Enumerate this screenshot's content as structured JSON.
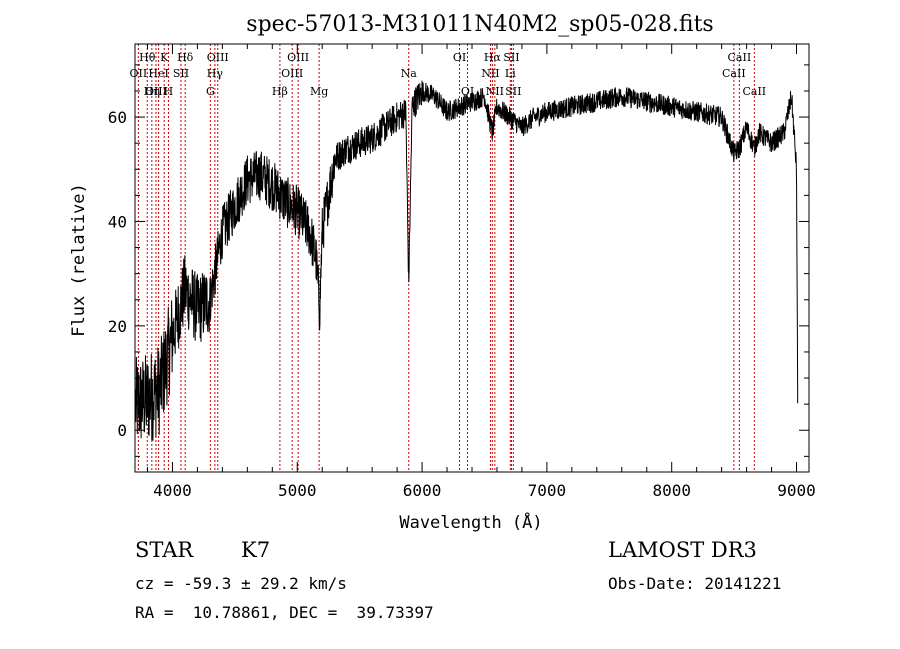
{
  "chart_data": {
    "type": "line",
    "title": "spec-57013-M31011N40M2_sp05-028.fits",
    "xlabel": "Wavelength (Å)",
    "ylabel": "Flux (relative)",
    "xlim": [
      3700,
      9100
    ],
    "ylim": [
      -8,
      74
    ],
    "xticks": [
      4000,
      5000,
      6000,
      7000,
      8000,
      9000
    ],
    "yticks": [
      0,
      20,
      40,
      60
    ],
    "xticklabels": [
      "4000",
      "5000",
      "6000",
      "7000",
      "8000",
      "9000"
    ],
    "yticklabels": [
      "0",
      "20",
      "40",
      "60"
    ],
    "spectrum_envelope": {
      "x": [
        3700,
        3800,
        3900,
        4000,
        4100,
        4200,
        4300,
        4400,
        4500,
        4600,
        4700,
        4800,
        4900,
        5000,
        5100,
        5150,
        5180,
        5200,
        5300,
        5400,
        5500,
        5600,
        5700,
        5800,
        5870,
        5893,
        5920,
        6000,
        6100,
        6200,
        6300,
        6400,
        6500,
        6563,
        6600,
        6700,
        6800,
        6900,
        7000,
        7200,
        7400,
        7600,
        7800,
        8000,
        8200,
        8400,
        8498,
        8542,
        8600,
        8662,
        8700,
        8800,
        8900,
        8960,
        9000,
        9010
      ],
      "y": [
        5,
        6,
        8,
        18,
        27,
        23,
        25,
        38,
        43,
        48,
        49,
        47,
        44,
        42,
        38,
        33,
        23,
        38,
        52,
        54,
        55,
        56,
        58,
        60,
        61,
        28,
        62,
        65,
        64,
        61,
        62,
        63,
        64,
        57,
        62,
        60,
        58,
        60,
        61,
        62,
        63,
        64,
        63,
        62,
        61,
        60,
        53,
        54,
        58,
        54,
        57,
        55,
        57,
        64,
        50,
        2
      ]
    },
    "lines": [
      {
        "wave": 3727,
        "label": "OII",
        "row": 2
      },
      {
        "wave": 3798,
        "label": "Hθ",
        "row": 1
      },
      {
        "wave": 3835,
        "label": "Hη",
        "row": 3
      },
      {
        "wave": 3868,
        "label": "OIII",
        "row": 3
      },
      {
        "wave": 3889,
        "label": "HeI",
        "row": 2
      },
      {
        "wave": 3934,
        "label": "K",
        "row": 1
      },
      {
        "wave": 3968,
        "label": "H",
        "row": 3
      },
      {
        "wave": 4068,
        "label": "SII",
        "row": 2
      },
      {
        "wave": 4102,
        "label": "Hδ",
        "row": 1
      },
      {
        "wave": 4304,
        "label": "G",
        "row": 3
      },
      {
        "wave": 4340,
        "label": "Hγ",
        "row": 2
      },
      {
        "wave": 4363,
        "label": "OIII",
        "row": 1
      },
      {
        "wave": 4861,
        "label": "Hβ",
        "row": 3
      },
      {
        "wave": 4959,
        "label": "OIII",
        "row": 2
      },
      {
        "wave": 5007,
        "label": "OIII",
        "row": 1
      },
      {
        "wave": 5175,
        "label": "Mg",
        "row": 3
      },
      {
        "wave": 5893,
        "label": "Na",
        "row": 2
      },
      {
        "wave": 6300,
        "label": "OI",
        "row": 1
      },
      {
        "wave": 6364,
        "label": "OI",
        "row": 3
      },
      {
        "wave": 6548,
        "label": "NII",
        "row": 2
      },
      {
        "wave": 6563,
        "label": "Hα",
        "row": 1
      },
      {
        "wave": 6583,
        "label": "NII",
        "row": 3
      },
      {
        "wave": 6707,
        "label": "Li",
        "row": 2
      },
      {
        "wave": 6716,
        "label": "SII",
        "row": 1
      },
      {
        "wave": 6731,
        "label": "SII",
        "row": 3
      },
      {
        "wave": 8498,
        "label": "CaII",
        "row": 2
      },
      {
        "wave": 8542,
        "label": "CaII",
        "row": 1
      },
      {
        "wave": 8662,
        "label": "CaII",
        "row": 3
      }
    ]
  },
  "info": {
    "class": "STAR",
    "subclass": "K7",
    "survey": "LAMOST DR3",
    "cz": "cz = -59.3 ± 29.2 km/s",
    "obs_date": "Obs-Date: 20141221",
    "coords": "RA =  10.78861, DEC =  39.73397"
  },
  "colors": {
    "spectrum": "#000000",
    "line_marker": "#cc0000",
    "axis": "#000000"
  }
}
